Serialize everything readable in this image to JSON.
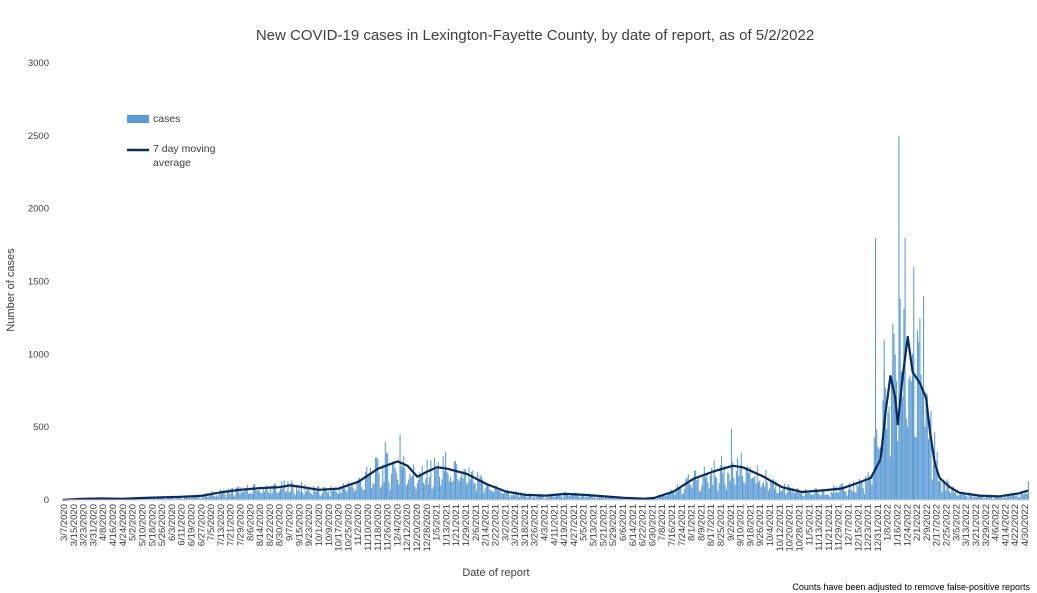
{
  "colors": {
    "bar": "#5b9bd5",
    "line": "#0b2a5c",
    "text": "#404040"
  },
  "chart_data": {
    "type": "bar",
    "title": "New COVID-19 cases in Lexington-Fayette County, by date of report, as of 5/2/2022",
    "xlabel": "Date of report",
    "ylabel": "Number of cases",
    "ylim": [
      0,
      3000
    ],
    "yticks": [
      0,
      500,
      1000,
      1500,
      2000,
      2500,
      3000
    ],
    "grid": false,
    "legend_position": "top-left",
    "note": "Counts have been adjusted to remove false-positive reports",
    "x_start": "2020-03-07",
    "x_end": "2022-04-30",
    "x_tick_labels": [
      "3/7/2020",
      "3/15/2020",
      "3/23/2020",
      "3/31/2020",
      "4/8/2020",
      "4/16/2020",
      "4/24/2020",
      "5/2/2020",
      "5/10/2020",
      "5/18/2020",
      "5/26/2020",
      "6/3/2020",
      "6/11/2020",
      "6/19/2020",
      "6/27/2020",
      "7/5/2020",
      "7/13/2020",
      "7/21/2020",
      "7/29/2020",
      "8/6/2020",
      "8/14/2020",
      "8/22/2020",
      "8/30/2020",
      "9/7/2020",
      "9/15/2020",
      "9/23/2020",
      "10/1/2020",
      "10/9/2020",
      "10/17/2020",
      "10/25/2020",
      "11/2/2020",
      "11/10/2020",
      "11/18/2020",
      "11/26/2020",
      "12/4/2020",
      "12/12/2020",
      "12/20/2020",
      "12/28/2020",
      "1/5/2021",
      "1/13/2021",
      "1/21/2021",
      "1/29/2021",
      "2/6/2021",
      "2/14/2021",
      "2/22/2021",
      "3/2/2021",
      "3/10/2021",
      "3/18/2021",
      "3/26/2021",
      "4/3/2021",
      "4/11/2021",
      "4/19/2021",
      "4/27/2021",
      "5/5/2021",
      "5/13/2021",
      "5/21/2021",
      "5/29/2021",
      "6/6/2021",
      "6/14/2021",
      "6/22/2021",
      "6/30/2021",
      "7/8/2021",
      "7/16/2021",
      "7/24/2021",
      "8/1/2021",
      "8/9/2021",
      "8/17/2021",
      "8/25/2021",
      "9/2/2021",
      "9/10/2021",
      "9/18/2021",
      "9/26/2021",
      "10/4/2021",
      "10/12/2021",
      "10/20/2021",
      "10/28/2021",
      "11/5/2021",
      "11/13/2021",
      "11/21/2021",
      "11/29/2021",
      "12/7/2021",
      "12/15/2021",
      "12/23/2021",
      "12/31/2021",
      "1/8/2022",
      "1/16/2022",
      "1/24/2022",
      "2/1/2022",
      "2/9/2022",
      "2/17/2022",
      "2/25/2022",
      "3/5/2022",
      "3/13/2022",
      "3/21/2022",
      "3/29/2022",
      "4/6/2022",
      "4/14/2022",
      "4/22/2022",
      "4/30/2022"
    ],
    "series": [
      {
        "name": "cases",
        "kind": "bar",
        "anchors": [
          [
            "2020-03-07",
            2
          ],
          [
            "2020-03-23",
            8
          ],
          [
            "2020-04-08",
            12
          ],
          [
            "2020-04-24",
            8
          ],
          [
            "2020-05-10",
            15
          ],
          [
            "2020-05-26",
            18
          ],
          [
            "2020-06-11",
            22
          ],
          [
            "2020-06-27",
            30
          ],
          [
            "2020-07-13",
            55
          ],
          [
            "2020-07-29",
            75
          ],
          [
            "2020-08-14",
            85
          ],
          [
            "2020-08-30",
            90
          ],
          [
            "2020-09-07",
            105
          ],
          [
            "2020-09-15",
            95
          ],
          [
            "2020-10-01",
            70
          ],
          [
            "2020-10-17",
            80
          ],
          [
            "2020-11-02",
            130
          ],
          [
            "2020-11-18",
            220
          ],
          [
            "2020-12-04",
            260
          ],
          [
            "2020-12-12",
            240
          ],
          [
            "2020-12-20",
            160
          ],
          [
            "2020-12-28",
            200
          ],
          [
            "2021-01-05",
            230
          ],
          [
            "2021-01-13",
            220
          ],
          [
            "2021-01-29",
            180
          ],
          [
            "2021-02-14",
            110
          ],
          [
            "2021-03-02",
            60
          ],
          [
            "2021-03-18",
            35
          ],
          [
            "2021-04-03",
            30
          ],
          [
            "2021-04-19",
            45
          ],
          [
            "2021-05-05",
            35
          ],
          [
            "2021-05-21",
            25
          ],
          [
            "2021-06-06",
            15
          ],
          [
            "2021-06-22",
            10
          ],
          [
            "2021-06-30",
            15
          ],
          [
            "2021-07-16",
            60
          ],
          [
            "2021-08-01",
            150
          ],
          [
            "2021-08-17",
            200
          ],
          [
            "2021-09-02",
            240
          ],
          [
            "2021-09-10",
            230
          ],
          [
            "2021-09-26",
            170
          ],
          [
            "2021-10-12",
            90
          ],
          [
            "2021-10-28",
            55
          ],
          [
            "2021-11-13",
            65
          ],
          [
            "2021-11-29",
            80
          ],
          [
            "2021-12-07",
            100
          ],
          [
            "2021-12-23",
            150
          ],
          [
            "2021-12-31",
            600
          ],
          [
            "2022-01-08",
            900
          ],
          [
            "2022-01-16",
            1000
          ],
          [
            "2022-01-24",
            1050
          ],
          [
            "2022-02-01",
            900
          ],
          [
            "2022-02-09",
            500
          ],
          [
            "2022-02-17",
            180
          ],
          [
            "2022-02-25",
            90
          ],
          [
            "2022-03-05",
            50
          ],
          [
            "2022-03-21",
            30
          ],
          [
            "2022-04-06",
            25
          ],
          [
            "2022-04-22",
            50
          ],
          [
            "2022-04-30",
            80
          ]
        ],
        "spikes": [
          [
            "2020-11-24",
            400
          ],
          [
            "2020-12-06",
            450
          ],
          [
            "2021-01-12",
            330
          ],
          [
            "2021-09-01",
            490
          ],
          [
            "2021-12-27",
            1800
          ],
          [
            "2022-01-03",
            1100
          ],
          [
            "2022-01-12",
            1000
          ],
          [
            "2022-01-15",
            2500
          ],
          [
            "2022-01-20",
            1800
          ],
          [
            "2022-01-27",
            1600
          ],
          [
            "2022-02-04",
            1400
          ],
          [
            "2022-04-30",
            130
          ]
        ]
      },
      {
        "name": "7 day moving average",
        "kind": "line",
        "values": [
          [
            "2020-03-07",
            1
          ],
          [
            "2020-03-23",
            8
          ],
          [
            "2020-04-08",
            10
          ],
          [
            "2020-04-24",
            8
          ],
          [
            "2020-05-10",
            14
          ],
          [
            "2020-05-26",
            18
          ],
          [
            "2020-06-11",
            22
          ],
          [
            "2020-06-27",
            28
          ],
          [
            "2020-07-13",
            52
          ],
          [
            "2020-07-29",
            70
          ],
          [
            "2020-08-14",
            82
          ],
          [
            "2020-08-30",
            88
          ],
          [
            "2020-09-07",
            100
          ],
          [
            "2020-09-15",
            92
          ],
          [
            "2020-10-01",
            70
          ],
          [
            "2020-10-17",
            78
          ],
          [
            "2020-11-02",
            125
          ],
          [
            "2020-11-18",
            215
          ],
          [
            "2020-11-26",
            240
          ],
          [
            "2020-12-04",
            265
          ],
          [
            "2020-12-12",
            235
          ],
          [
            "2020-12-20",
            160
          ],
          [
            "2020-12-28",
            195
          ],
          [
            "2021-01-05",
            225
          ],
          [
            "2021-01-13",
            215
          ],
          [
            "2021-01-29",
            180
          ],
          [
            "2021-02-14",
            110
          ],
          [
            "2021-03-02",
            58
          ],
          [
            "2021-03-18",
            35
          ],
          [
            "2021-04-03",
            30
          ],
          [
            "2021-04-19",
            42
          ],
          [
            "2021-05-05",
            35
          ],
          [
            "2021-05-21",
            25
          ],
          [
            "2021-06-06",
            15
          ],
          [
            "2021-06-22",
            9
          ],
          [
            "2021-06-30",
            14
          ],
          [
            "2021-07-16",
            58
          ],
          [
            "2021-08-01",
            145
          ],
          [
            "2021-08-17",
            195
          ],
          [
            "2021-09-02",
            235
          ],
          [
            "2021-09-10",
            225
          ],
          [
            "2021-09-26",
            165
          ],
          [
            "2021-10-12",
            88
          ],
          [
            "2021-10-28",
            55
          ],
          [
            "2021-11-13",
            65
          ],
          [
            "2021-11-29",
            78
          ],
          [
            "2021-12-07",
            100
          ],
          [
            "2021-12-23",
            150
          ],
          [
            "2021-12-31",
            280
          ],
          [
            "2022-01-04",
            600
          ],
          [
            "2022-01-08",
            850
          ],
          [
            "2022-01-12",
            700
          ],
          [
            "2022-01-14",
            520
          ],
          [
            "2022-01-18",
            850
          ],
          [
            "2022-01-22",
            1120
          ],
          [
            "2022-01-26",
            880
          ],
          [
            "2022-02-01",
            800
          ],
          [
            "2022-02-06",
            700
          ],
          [
            "2022-02-09",
            480
          ],
          [
            "2022-02-13",
            250
          ],
          [
            "2022-02-17",
            150
          ],
          [
            "2022-02-25",
            90
          ],
          [
            "2022-03-05",
            50
          ],
          [
            "2022-03-21",
            30
          ],
          [
            "2022-04-06",
            25
          ],
          [
            "2022-04-22",
            45
          ],
          [
            "2022-04-30",
            65
          ]
        ]
      }
    ]
  }
}
